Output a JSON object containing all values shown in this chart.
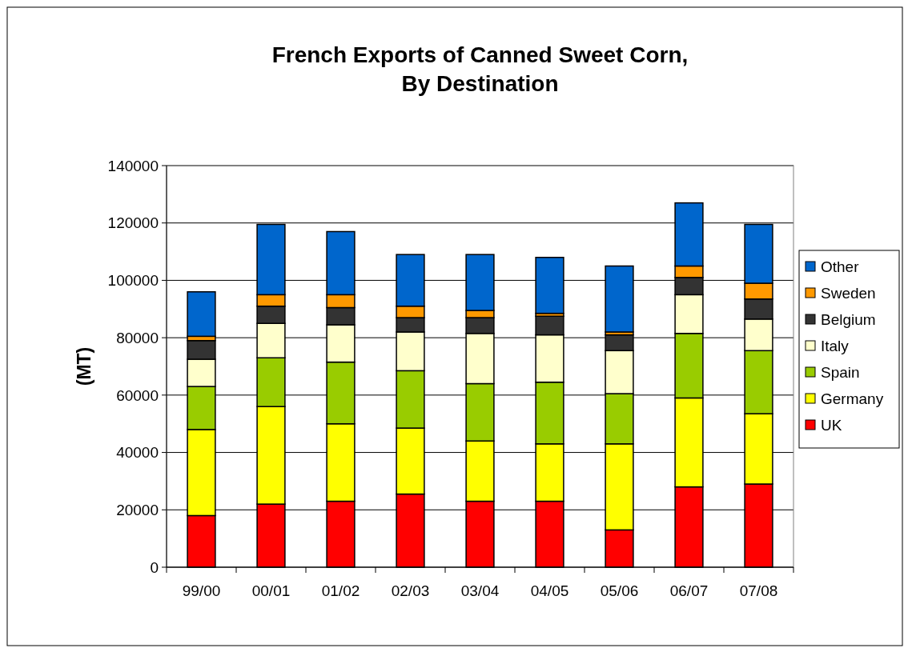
{
  "chart_data": {
    "type": "bar",
    "title": "French Exports of Canned Sweet Corn,\nBy Destination",
    "ylabel": "(MT)",
    "stacked": true,
    "grid": "y",
    "legend": "right",
    "categories": [
      "99/00",
      "00/01",
      "01/02",
      "02/03",
      "03/04",
      "04/05",
      "05/06",
      "06/07",
      "07/08"
    ],
    "ylim": [
      0,
      140000
    ],
    "yticks": [
      0,
      20000,
      40000,
      60000,
      80000,
      100000,
      120000,
      140000
    ],
    "series": [
      {
        "name": "UK",
        "color": "#ff0000",
        "values": [
          18000,
          22000,
          23000,
          25500,
          23000,
          23000,
          13000,
          28000,
          29000
        ]
      },
      {
        "name": "Germany",
        "color": "#ffff00",
        "values": [
          30000,
          34000,
          27000,
          23000,
          21000,
          20000,
          30000,
          31000,
          24500
        ]
      },
      {
        "name": "Spain",
        "color": "#99cc00",
        "values": [
          15000,
          17000,
          21500,
          20000,
          20000,
          21500,
          17500,
          22500,
          22000
        ]
      },
      {
        "name": "Italy",
        "color": "#ffffcc",
        "values": [
          9500,
          12000,
          13000,
          13500,
          17500,
          16500,
          15000,
          13500,
          11000
        ]
      },
      {
        "name": "Belgium",
        "color": "#333333",
        "values": [
          6500,
          6000,
          6000,
          5000,
          5500,
          6500,
          5500,
          6000,
          7000
        ]
      },
      {
        "name": "Sweden",
        "color": "#ff9900",
        "values": [
          1500,
          4000,
          4500,
          4000,
          2500,
          1000,
          1000,
          4000,
          5500
        ]
      },
      {
        "name": "Other",
        "color": "#0066cc",
        "values": [
          15500,
          24500,
          22000,
          18000,
          19500,
          19500,
          23000,
          22000,
          20500
        ]
      }
    ]
  }
}
